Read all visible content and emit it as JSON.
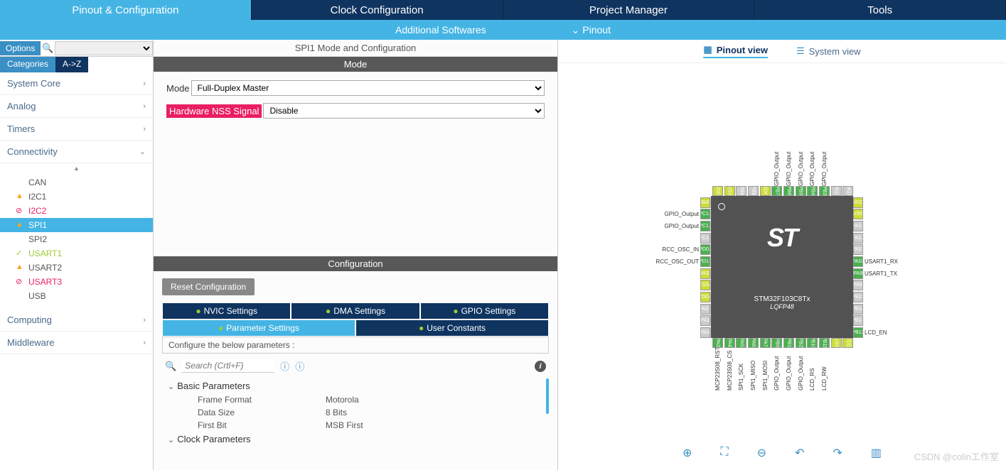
{
  "topTabs": [
    {
      "label": "Pinout & Configuration",
      "active": true
    },
    {
      "label": "Clock Configuration",
      "active": false
    },
    {
      "label": "Project Manager",
      "active": false
    },
    {
      "label": "Tools",
      "active": false
    }
  ],
  "subBar": {
    "additional": "Additional Softwares",
    "pinout": "Pinout"
  },
  "leftPanel": {
    "optionsLabel": "Options",
    "catTabs": {
      "categories": "Categories",
      "az": "A->Z"
    },
    "groups": [
      {
        "name": "System Core",
        "expanded": false
      },
      {
        "name": "Analog",
        "expanded": false
      },
      {
        "name": "Timers",
        "expanded": false
      },
      {
        "name": "Connectivity",
        "expanded": true,
        "items": [
          {
            "name": "CAN",
            "icon": null
          },
          {
            "name": "I2C1",
            "icon": "warn"
          },
          {
            "name": "I2C2",
            "icon": "err",
            "redText": true
          },
          {
            "name": "SPI1",
            "icon": "warn",
            "selected": true
          },
          {
            "name": "SPI2",
            "icon": null
          },
          {
            "name": "USART1",
            "icon": "ok",
            "greenText": true
          },
          {
            "name": "USART2",
            "icon": "warn"
          },
          {
            "name": "USART3",
            "icon": "err",
            "redText": true
          },
          {
            "name": "USB",
            "icon": null
          }
        ]
      },
      {
        "name": "Computing",
        "expanded": false
      },
      {
        "name": "Middleware",
        "expanded": false
      }
    ]
  },
  "midPanel": {
    "title": "SPI1 Mode and Configuration",
    "modeHeader": "Mode",
    "modeRows": [
      {
        "label": "Mode",
        "value": "Full-Duplex Master",
        "highlight": false
      },
      {
        "label": "Hardware NSS Signal",
        "value": "Disable",
        "highlight": true
      }
    ],
    "cfgHeader": "Configuration",
    "resetBtn": "Reset Configuration",
    "cfgTabs": {
      "row1": [
        {
          "label": "NVIC Settings"
        },
        {
          "label": "DMA Settings"
        },
        {
          "label": "GPIO Settings"
        }
      ],
      "row2": [
        {
          "label": "Parameter Settings",
          "active": true
        },
        {
          "label": "User Constants"
        }
      ]
    },
    "cfgDesc": "Configure the below parameters :",
    "searchPlaceholder": "Search (Crtl+F)",
    "paramGroups": [
      {
        "name": "Basic Parameters",
        "items": [
          {
            "k": "Frame Format",
            "v": "Motorola"
          },
          {
            "k": "Data Size",
            "v": "8 Bits"
          },
          {
            "k": "First Bit",
            "v": "MSB First"
          }
        ]
      },
      {
        "name": "Clock Parameters",
        "items": []
      }
    ]
  },
  "rightPanel": {
    "viewTabs": {
      "pinout": "Pinout view",
      "system": "System view"
    },
    "chip": {
      "name": "STM32F103C8Tx",
      "pkg": "LQFP48",
      "logo": "ST"
    },
    "pins": {
      "left": [
        {
          "box": "VBAT",
          "color": "yellow",
          "label": ""
        },
        {
          "box": "PC1..",
          "color": "green",
          "label": "GPIO_Output"
        },
        {
          "box": "PC1..",
          "color": "green",
          "label": "GPIO_Output"
        },
        {
          "box": "PC1..",
          "color": "gray",
          "label": ""
        },
        {
          "box": "PD0..",
          "color": "green",
          "label": "RCC_OSC_IN"
        },
        {
          "box": "PD1..",
          "color": "green",
          "label": "RCC_OSC_OUT"
        },
        {
          "box": "NRST",
          "color": "yellow",
          "label": ""
        },
        {
          "box": "VSSA",
          "color": "yellow",
          "label": ""
        },
        {
          "box": "VDDA",
          "color": "yellow",
          "label": ""
        },
        {
          "box": "PA0..",
          "color": "gray",
          "label": ""
        },
        {
          "box": "PA1",
          "color": "gray",
          "label": ""
        },
        {
          "box": "PA2",
          "color": "gray",
          "label": ""
        }
      ],
      "right": [
        {
          "box": "VDD",
          "color": "yellow",
          "label": ""
        },
        {
          "box": "VSS",
          "color": "yellow",
          "label": ""
        },
        {
          "box": "PA13",
          "color": "gray",
          "label": ""
        },
        {
          "box": "PA12",
          "color": "gray",
          "label": ""
        },
        {
          "box": "PA11",
          "color": "gray",
          "label": ""
        },
        {
          "box": "PA10",
          "color": "green",
          "label": "USART1_RX"
        },
        {
          "box": "PA9",
          "color": "green",
          "label": "USART1_TX"
        },
        {
          "box": "PA8",
          "color": "gray",
          "label": ""
        },
        {
          "box": "PB15",
          "color": "gray",
          "label": ""
        },
        {
          "box": "PB14",
          "color": "gray",
          "label": ""
        },
        {
          "box": "PB13",
          "color": "gray",
          "label": ""
        },
        {
          "box": "PB12",
          "color": "green",
          "label": "LCD_EN"
        }
      ],
      "top": [
        {
          "box": "VDD",
          "color": "yellow",
          "label": ""
        },
        {
          "box": "VSS",
          "color": "yellow",
          "label": ""
        },
        {
          "box": "PB9",
          "color": "gray",
          "label": ""
        },
        {
          "box": "PB8",
          "color": "gray",
          "label": ""
        },
        {
          "box": "BOO",
          "color": "yellow",
          "label": ""
        },
        {
          "box": "PB7",
          "color": "green",
          "label": "GPIO_Output"
        },
        {
          "box": "PB6",
          "color": "green",
          "label": "GPIO_Output"
        },
        {
          "box": "PB5",
          "color": "green",
          "label": "GPIO_Output"
        },
        {
          "box": "PB4",
          "color": "green",
          "label": "GPIO_Output"
        },
        {
          "box": "PB3",
          "color": "green",
          "label": "GPIO_Output"
        },
        {
          "box": "PA15",
          "color": "gray",
          "label": ""
        },
        {
          "box": "PA14",
          "color": "gray",
          "label": ""
        }
      ],
      "bottom": [
        {
          "box": "PA3",
          "color": "green",
          "label": "MCP23S08_RST"
        },
        {
          "box": "PA4",
          "color": "green",
          "label": "MCP23S08_CS"
        },
        {
          "box": "PA5",
          "color": "green",
          "label": "SPI1_SCK"
        },
        {
          "box": "PA6",
          "color": "green",
          "label": "SPI1_MISO"
        },
        {
          "box": "PA7",
          "color": "green",
          "label": "SPI1_MOSI"
        },
        {
          "box": "PB0",
          "color": "green",
          "label": "GPIO_Output"
        },
        {
          "box": "PB1",
          "color": "green",
          "label": "GPIO_Output"
        },
        {
          "box": "PB2",
          "color": "green",
          "label": "GPIO_Output"
        },
        {
          "box": "PB10",
          "color": "green",
          "label": "LCD_RS"
        },
        {
          "box": "PB11",
          "color": "green",
          "label": "LCD_RW"
        },
        {
          "box": "VSS",
          "color": "yellow",
          "label": ""
        },
        {
          "box": "VDD",
          "color": "yellow",
          "label": ""
        }
      ]
    },
    "watermark": "CSDN @colin工作室"
  },
  "colors": {
    "primary": "#43b4e4",
    "dark": "#0f3460",
    "green": "#4caf50",
    "yellow": "#cddc39",
    "gray": "#ccc",
    "magenta": "#e91e63"
  }
}
